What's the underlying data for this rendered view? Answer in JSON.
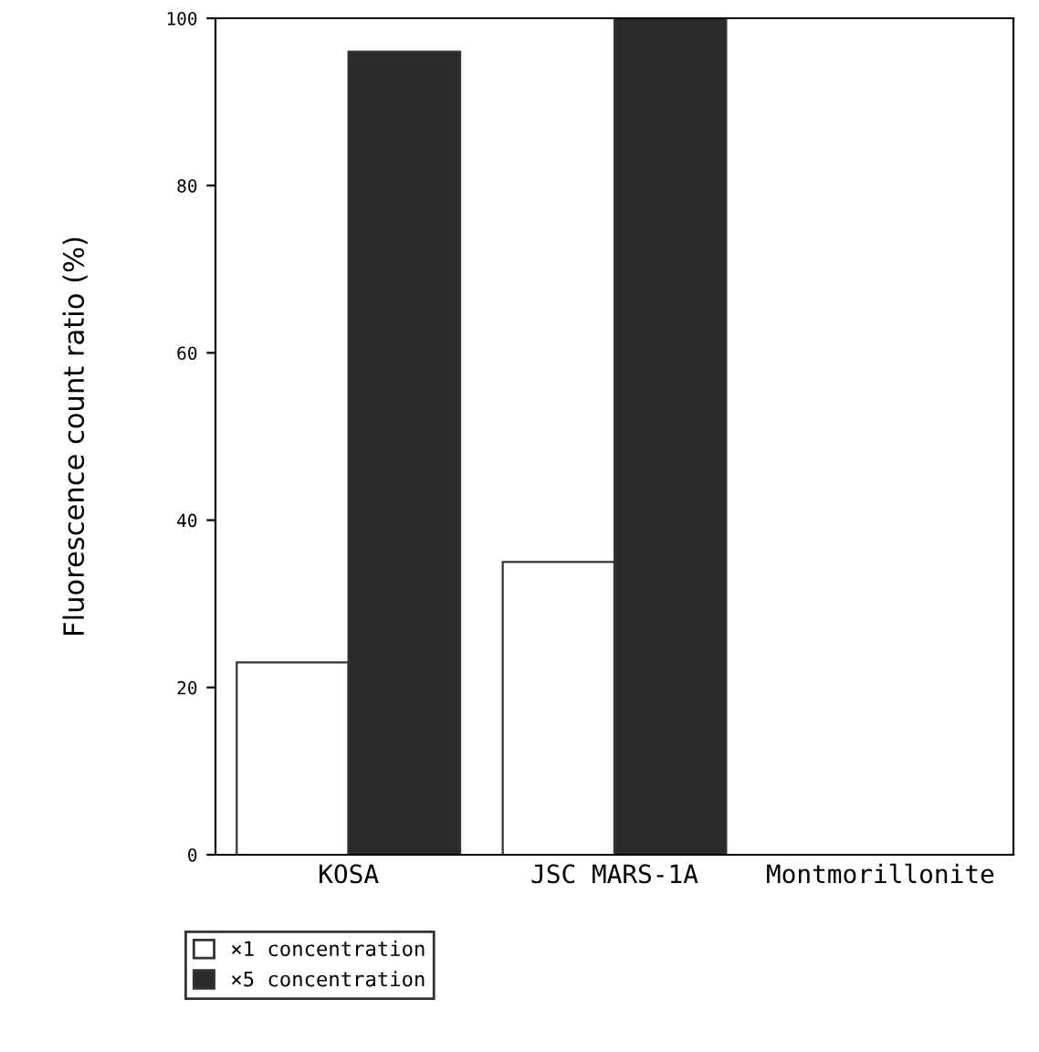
{
  "chart_data": {
    "type": "bar",
    "ylabel": "Fluorescence count ratio (%)",
    "categories": [
      "KOSA",
      "JSC MARS-1A",
      "Montmorillonite"
    ],
    "series": [
      {
        "name": "×1 concentration",
        "color": "#ffffff",
        "values": [
          23,
          35,
          null
        ]
      },
      {
        "name": "×5 concentration",
        "color": "#2b2b2b",
        "values": [
          96,
          100,
          null
        ]
      }
    ],
    "ylim": [
      0,
      100
    ],
    "yticks": [
      0,
      20,
      40,
      60,
      80,
      100
    ],
    "grid": false,
    "legend": "bottom left"
  }
}
